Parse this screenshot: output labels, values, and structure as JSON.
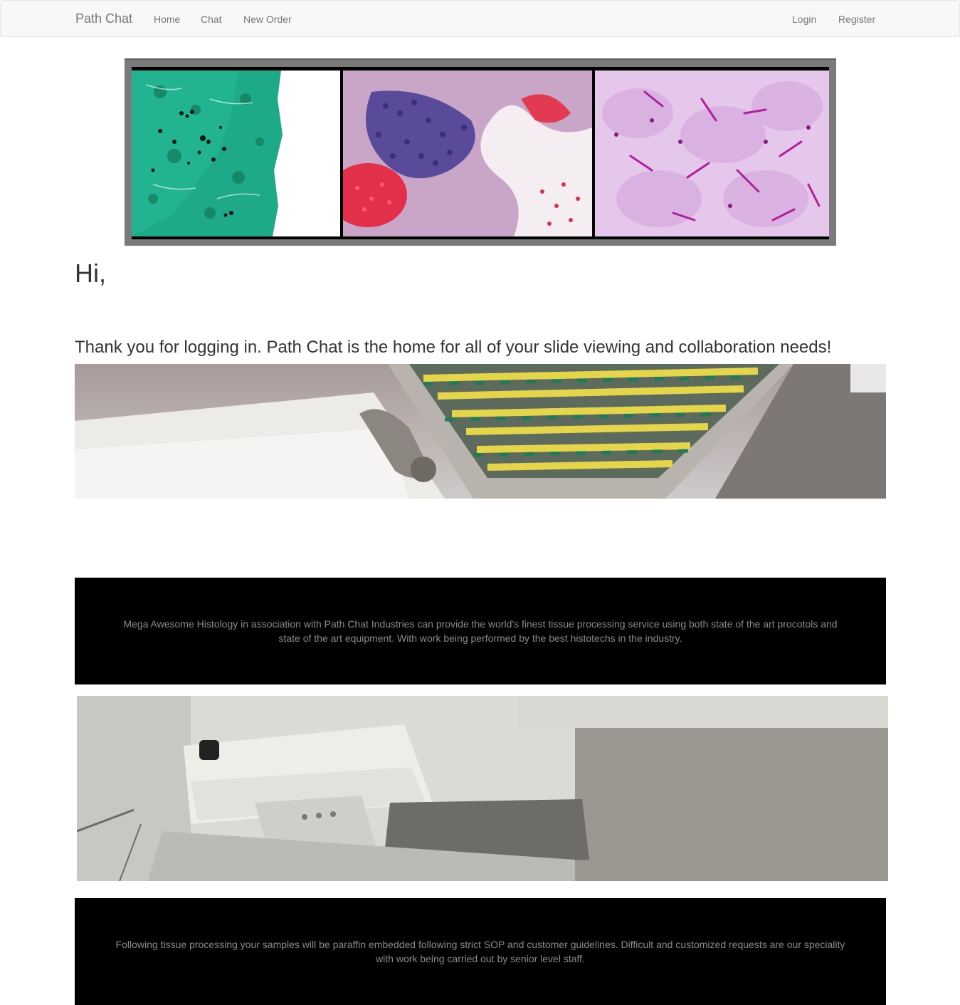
{
  "navbar": {
    "brand": "Path Chat",
    "links": [
      "Home",
      "Chat",
      "New Order"
    ],
    "right_links": [
      "Login",
      "Register"
    ]
  },
  "banner": {
    "panels": [
      "green-stained-tissue-image",
      "h-and-e-lung-tissue-image",
      "pink-stained-tissue-image"
    ]
  },
  "greeting": "Hi,",
  "tagline": "Thank you for logging in. Path Chat is the home for all of your slide viewing and collaboration needs!",
  "sections": [
    {
      "image": "tissue-processor-basket-photo",
      "text": "Mega Awesome Histology in association with Path Chat Industries can provide the world's finest tissue processing service using both state of the art procotols and state of the art equipment. With work being performed by the best histotechs in the industry."
    },
    {
      "image": "embedding-station-photo",
      "text": "Following tissue processing your samples will be paraffin embedded following strict SOP and customer guidelines. Difficult and customized requests are our speciality with work being carried out by senior level staff."
    }
  ],
  "colors": {
    "navbar_bg": "#f8f8f8",
    "nav_text": "#777777",
    "info_bg": "#000000",
    "info_text": "#8a8a8a"
  }
}
